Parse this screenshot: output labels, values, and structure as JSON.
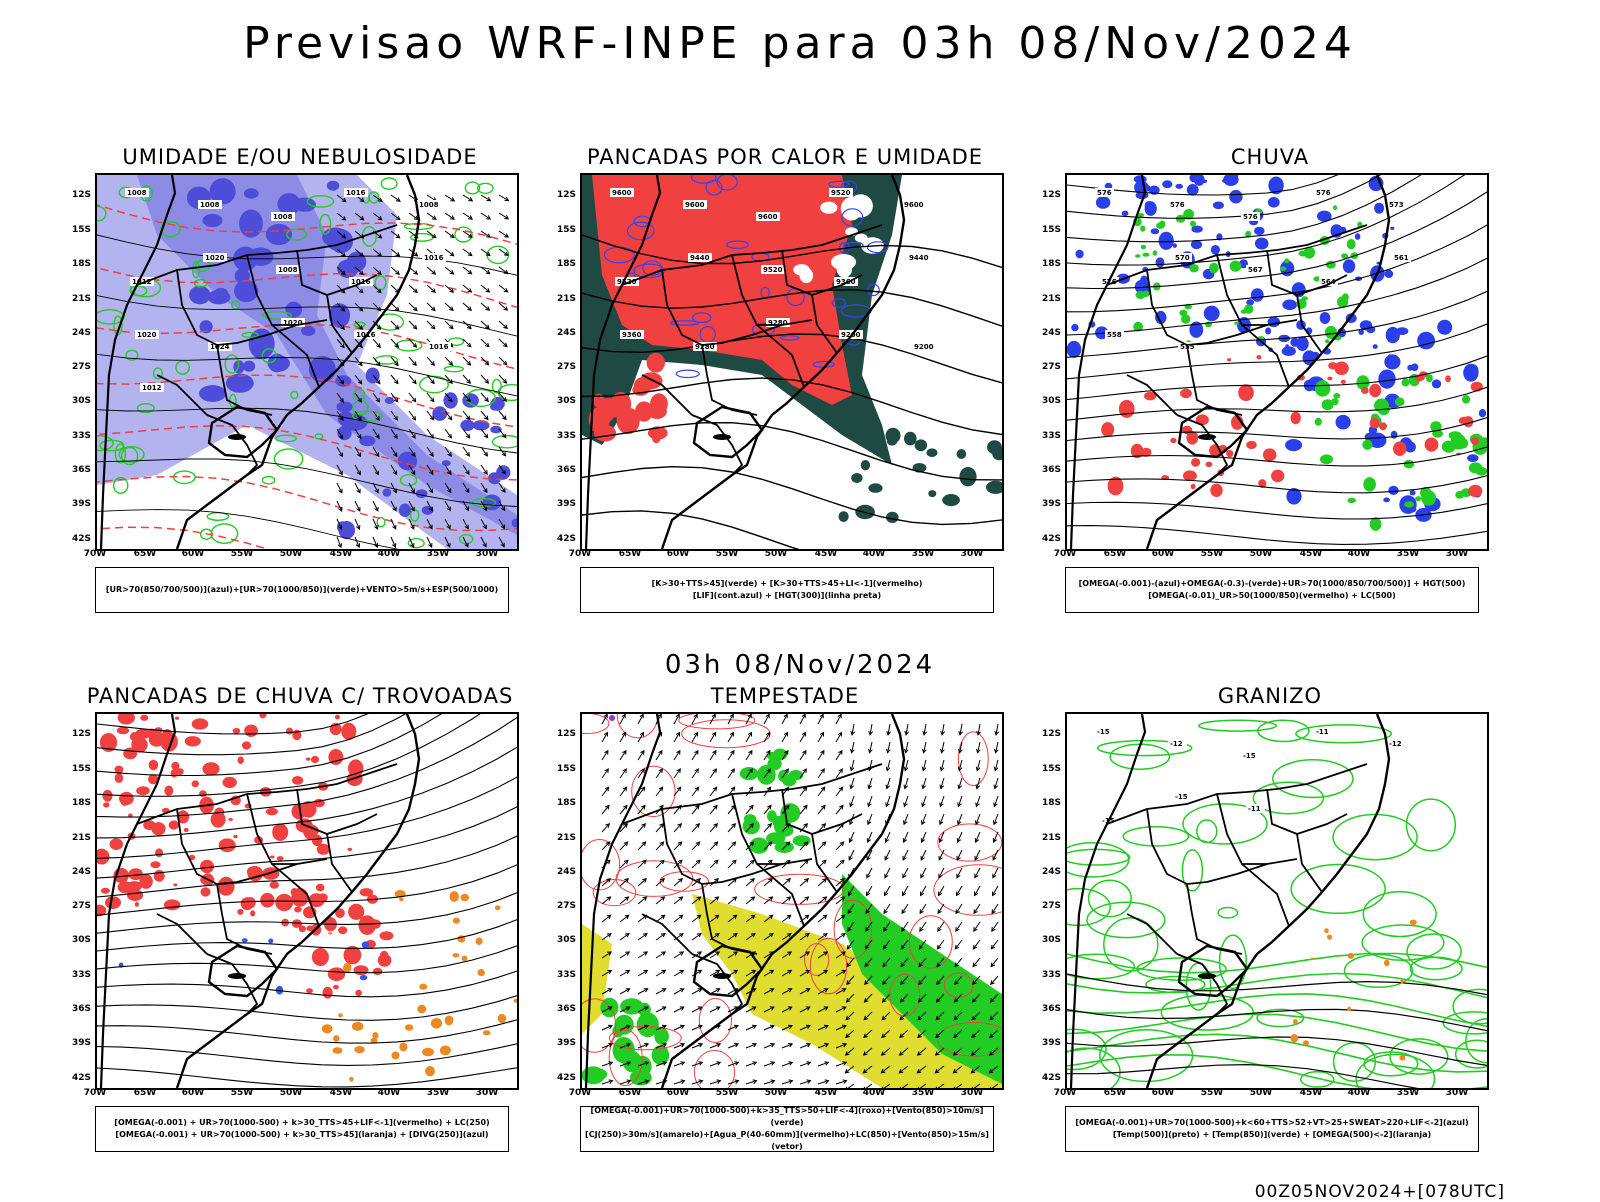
{
  "title": "Previsao WRF-INPE  para 03h 08/Nov/2024",
  "mid_title": "03h 08/Nov/2024",
  "footer": "00Z05NOV2024+[078UTC]",
  "axes": {
    "lat": [
      "12S",
      "15S",
      "18S",
      "21S",
      "24S",
      "27S",
      "30S",
      "33S",
      "36S",
      "39S",
      "42S"
    ],
    "lon": [
      "70W",
      "65W",
      "60W",
      "55W",
      "50W",
      "45W",
      "40W",
      "35W",
      "30W"
    ]
  },
  "colors": {
    "blue_light": "#b3b3f0",
    "blue_mid": "#8c8ce6",
    "blue_dark": "#4d4dd9",
    "green": "#22cc22",
    "red": "#f04040",
    "dark_teal": "#1f4a44",
    "orange": "#ee8822",
    "yellow": "#e0dc30",
    "purple": "#9933cc"
  },
  "panels": [
    {
      "title": "UMIDADE E/OU NEBULOSIDADE",
      "legend": [
        "[UR>70(850/700/500)](azul)+[UR>70(1000/850)](verde)+VENTO>5m/s+ESP(500/1000)"
      ],
      "contour_labels": [
        "1008",
        "1008",
        "1008",
        "1016",
        "1008",
        "1012",
        "1020",
        "1008",
        "1016",
        "1016",
        "1020",
        "1024",
        "1020",
        "1016",
        "1016",
        "1012"
      ]
    },
    {
      "title": "PANCADAS POR CALOR E UMIDADE",
      "legend": [
        "[K>30+TTS>45](verde) + [K>30+TTS>45+LI<-1](vermelho)",
        "[LIF](cont.azul) + [HGT(300)](linha preta)"
      ],
      "contour_labels": [
        "9600",
        "9600",
        "9600",
        "9520",
        "9600",
        "9520",
        "9440",
        "9520",
        "9360",
        "9440",
        "9360",
        "9280",
        "9280",
        "9200",
        "9200"
      ]
    },
    {
      "title": "CHUVA",
      "legend": [
        "[OMEGA(-0.001)-(azul)+OMEGA(-0.3)-(verde)+UR>70(1000/850/700/500)] + HGT(500)",
        "[OMEGA(-0.01)_UR>50(1000/850)(vermelho) + LC(500)"
      ],
      "contour_labels": [
        "576",
        "576",
        "576",
        "576",
        "573",
        "576",
        "570",
        "567",
        "564",
        "561",
        "558",
        "555"
      ]
    },
    {
      "title": "PANCADAS DE CHUVA C/ TROVOADAS",
      "legend": [
        "[OMEGA(-0.001) + UR>70(1000-500) + k>30_TTS>45+LIF<-1](vermelho) + LC(250)",
        "[OMEGA(-0.001) + UR>70(1000-500) + k>30_TTS>45](laranja) + [DIVG(250)](azul)"
      ],
      "contour_labels": []
    },
    {
      "title": "TEMPESTADE",
      "legend": [
        "[OMEGA(-0.001)+UR>70(1000-500)+k>35_TTS>50+LIF<-4](roxo)+[Vento(850)>10m/s](verde)",
        "[CJ(250)>30m/s](amarelo)+[Agua_P(40-60mm)](vermelho)+LC(850)+[Vento(850)>15m/s](vetor)"
      ],
      "contour_labels": []
    },
    {
      "title": "GRANIZO",
      "legend": [
        "[OMEGA(-0.001)+UR>70(1000-500)+k<60+TTS>52+VT>25+SWEAT>220+LIF<-2](azul)",
        "[Temp(500)](preto) + [Temp(850)](verde) + [OMEGA(500)<-2](laranja)"
      ],
      "contour_labels": [
        "-15",
        "-12",
        "-15",
        "-11",
        "-12",
        "-15",
        "-15",
        "-11"
      ]
    }
  ]
}
